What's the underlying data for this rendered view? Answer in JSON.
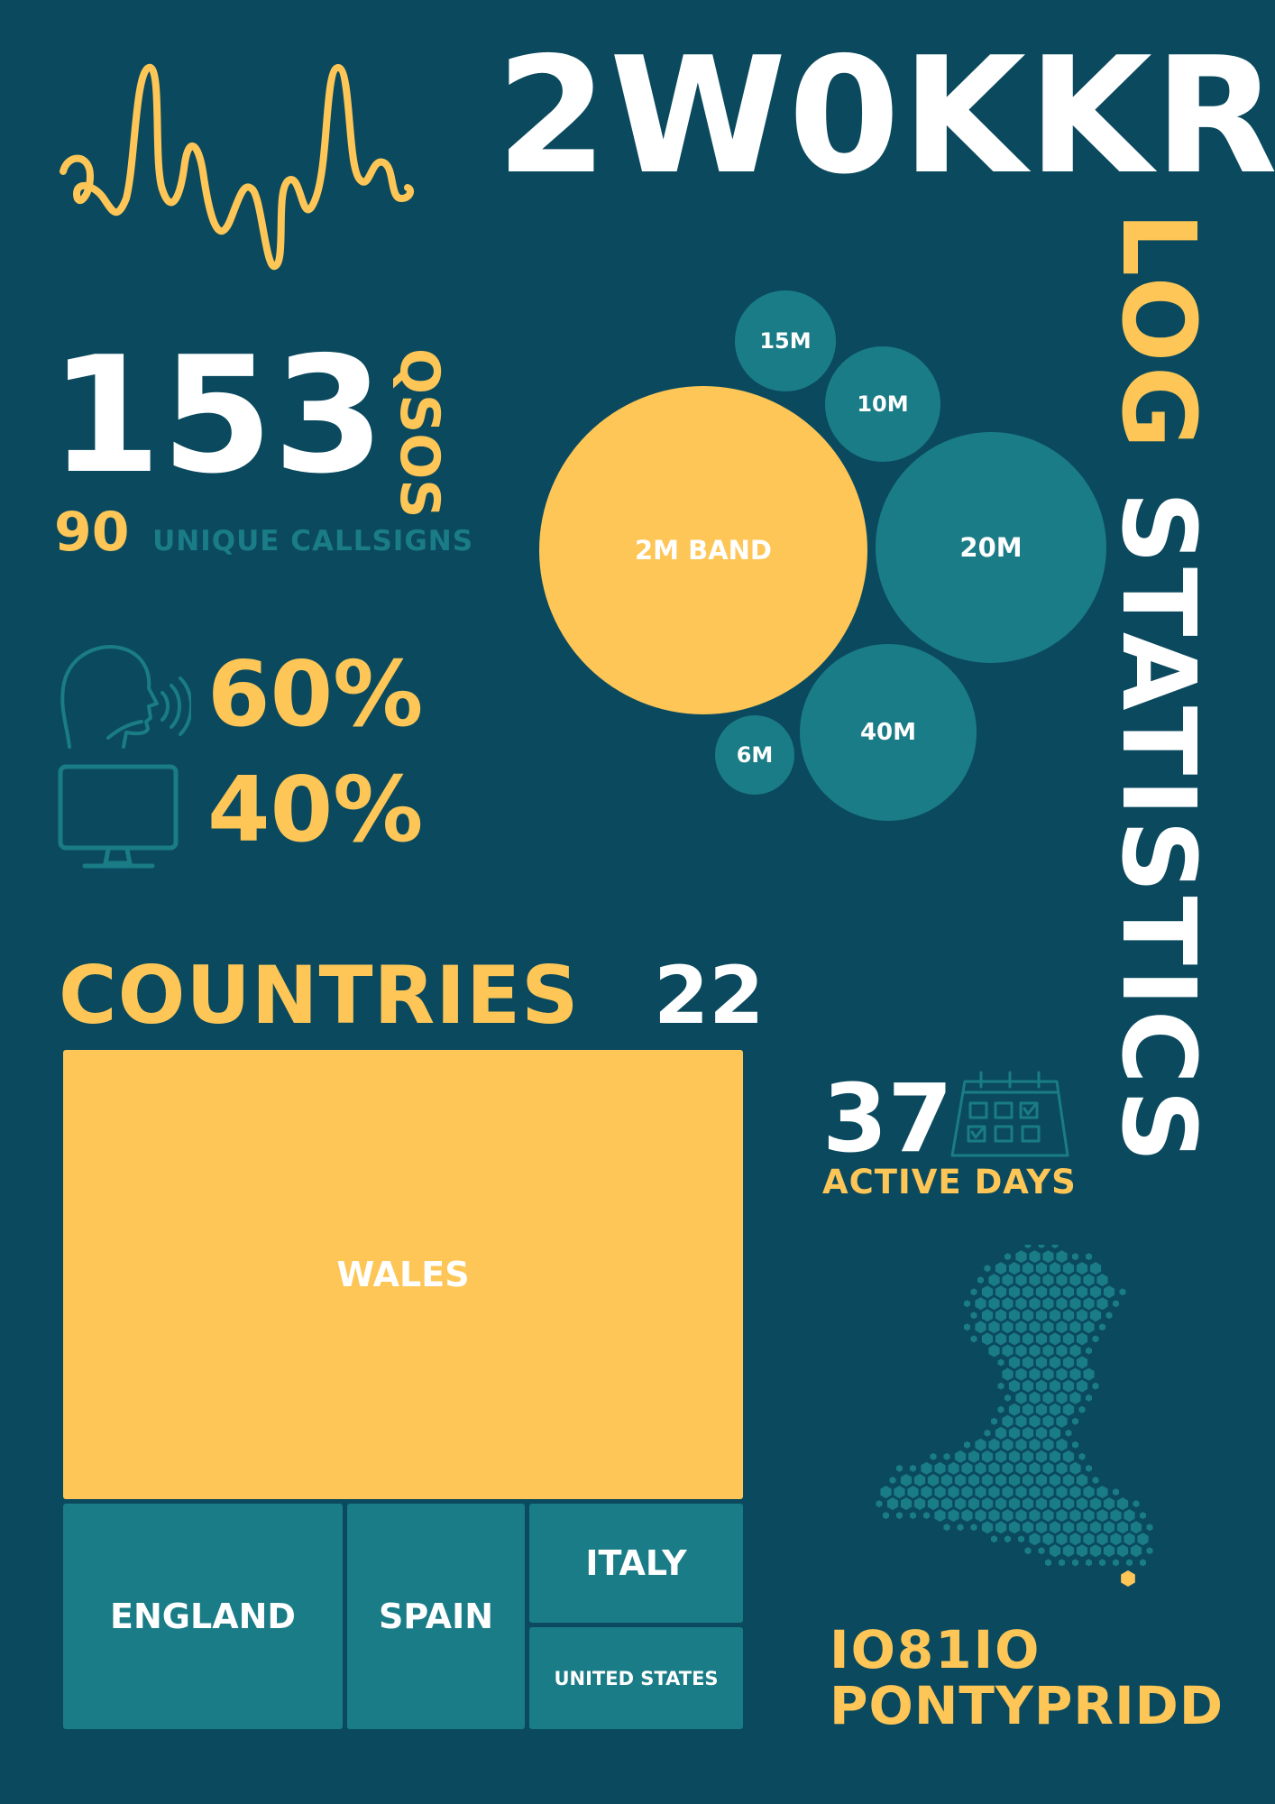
{
  "header": {
    "callsign": "2W0KKR",
    "subtitle": "LOG STATISTICS",
    "subtitle_part1": "LOG",
    "subtitle_part2": "STATISTICS"
  },
  "qsos": {
    "count": "153",
    "label": "QSOS"
  },
  "unique_callsigns": {
    "count": "90",
    "label": "UNIQUE CALLSIGNS"
  },
  "modes": [
    {
      "icon": "speaking-head-icon",
      "percent": "60%"
    },
    {
      "icon": "monitor-icon",
      "percent": "40%"
    }
  ],
  "bands": [
    {
      "label": "2M BAND",
      "size_rank": 1
    },
    {
      "label": "20M",
      "size_rank": 2
    },
    {
      "label": "40M",
      "size_rank": 3
    },
    {
      "label": "10M",
      "size_rank": 4
    },
    {
      "label": "15M",
      "size_rank": 5
    },
    {
      "label": "6M",
      "size_rank": 6
    }
  ],
  "countries": {
    "label": "COUNTRIES",
    "count": "22",
    "items": [
      {
        "name": "WALES"
      },
      {
        "name": "ENGLAND"
      },
      {
        "name": "SPAIN"
      },
      {
        "name": "ITALY"
      },
      {
        "name": "UNITED STATES"
      }
    ]
  },
  "active_days": {
    "count": "37",
    "label": "ACTIVE DAYS",
    "icon": "calendar-icon"
  },
  "location": {
    "grid": "IO81IO",
    "town": "PONTYPRIDD",
    "icon": "wales-hex-map-icon"
  },
  "decor": {
    "icon": "audio-waveform-icon"
  },
  "colors": {
    "background": "#0b4a5e",
    "accent": "#fdc657",
    "teal": "#1a7c86",
    "text": "#ffffff"
  }
}
